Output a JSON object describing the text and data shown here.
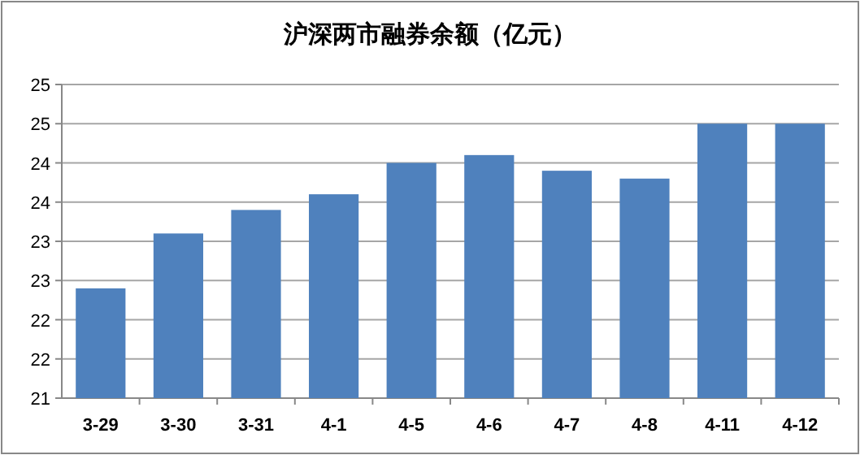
{
  "chart_data": {
    "type": "bar",
    "title": "沪深两市融券余额（亿元）",
    "categories": [
      "3-29",
      "3-30",
      "3-31",
      "4-1",
      "4-5",
      "4-6",
      "4-7",
      "4-8",
      "4-11",
      "4-12"
    ],
    "values": [
      22.4,
      23.1,
      23.4,
      23.6,
      24.0,
      24.1,
      23.9,
      23.8,
      24.5,
      24.5
    ],
    "color": "#4f81bd",
    "ylim": [
      21,
      25
    ],
    "yticks": [
      21,
      {
        "value": 21.5,
        "label": "22"
      },
      22,
      {
        "value": 22.5,
        "label": "23"
      },
      23,
      {
        "value": 23.5,
        "label": "24"
      },
      24,
      {
        "value": 24.5,
        "label": "25"
      },
      25
    ],
    "grid": "y"
  }
}
